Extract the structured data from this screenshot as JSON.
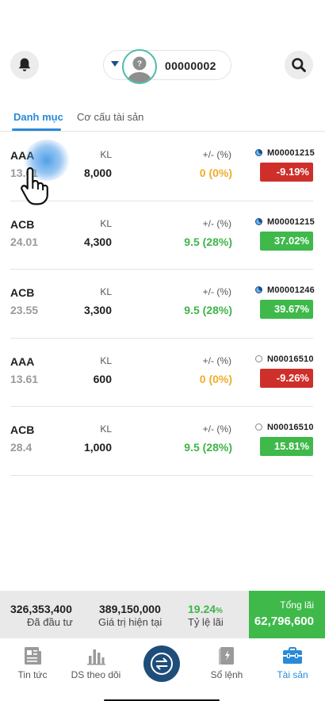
{
  "header": {
    "account_id": "00000002",
    "icons": {
      "left": "bell-icon",
      "right": "search-icon",
      "avatar": "user-avatar-icon"
    }
  },
  "tabs": [
    {
      "label": "Danh mục",
      "active": true
    },
    {
      "label": "Cơ cấu tài sản",
      "active": false
    }
  ],
  "portfolio": {
    "qty_label": "KL",
    "change_label": "+/- (%)",
    "rows": [
      {
        "symbol": "AAA",
        "price": "13.61",
        "qty": "8,000",
        "change": "0 (0%)",
        "change_type": "zero",
        "account": "M00001215",
        "account_icon": "filled",
        "pnl_pct": "-9.19%",
        "pnl_type": "neg"
      },
      {
        "symbol": "ACB",
        "price": "24.01",
        "qty": "4,300",
        "change": "9.5 (28%)",
        "change_type": "up",
        "account": "M00001215",
        "account_icon": "filled",
        "pnl_pct": "37.02%",
        "pnl_type": "pos"
      },
      {
        "symbol": "ACB",
        "price": "23.55",
        "qty": "3,300",
        "change": "9.5 (28%)",
        "change_type": "up",
        "account": "M00001246",
        "account_icon": "filled",
        "pnl_pct": "39.67%",
        "pnl_type": "pos"
      },
      {
        "symbol": "AAA",
        "price": "13.61",
        "qty": "600",
        "change": "0 (0%)",
        "change_type": "zero",
        "account": "N00016510",
        "account_icon": "hollow",
        "pnl_pct": "-9.26%",
        "pnl_type": "neg"
      },
      {
        "symbol": "ACB",
        "price": "28.4",
        "qty": "1,000",
        "change": "9.5 (28%)",
        "change_type": "up",
        "account": "N00016510",
        "account_icon": "hollow",
        "pnl_pct": "15.81%",
        "pnl_type": "pos"
      }
    ]
  },
  "summary": {
    "invested_value": "326,353,400",
    "invested_label": "Đã đầu tư",
    "current_value": "389,150,000",
    "current_label": "Giá trị hiện tại",
    "profit_ratio": "19.24",
    "profit_ratio_unit": "%",
    "profit_ratio_label": "Tỷ lệ lãi",
    "total_profit_label": "Tổng lãi",
    "total_profit": "62,796,600"
  },
  "nav": {
    "items": [
      {
        "label": "Tin tức",
        "icon": "newspaper-icon",
        "active": false
      },
      {
        "label": "DS theo dõi",
        "icon": "bar-chart-icon",
        "active": false
      },
      {
        "label": "",
        "icon": "exchange-icon",
        "active": false
      },
      {
        "label": "Sổ lệnh",
        "icon": "order-book-icon",
        "active": false
      },
      {
        "label": "Tài sản",
        "icon": "briefcase-icon",
        "active": true
      }
    ]
  },
  "colors": {
    "accent": "#2a8ad8",
    "navy": "#1e4d7a",
    "up": "#3eb54a",
    "zero": "#f0ad2b",
    "down": "#cf2f2a"
  }
}
